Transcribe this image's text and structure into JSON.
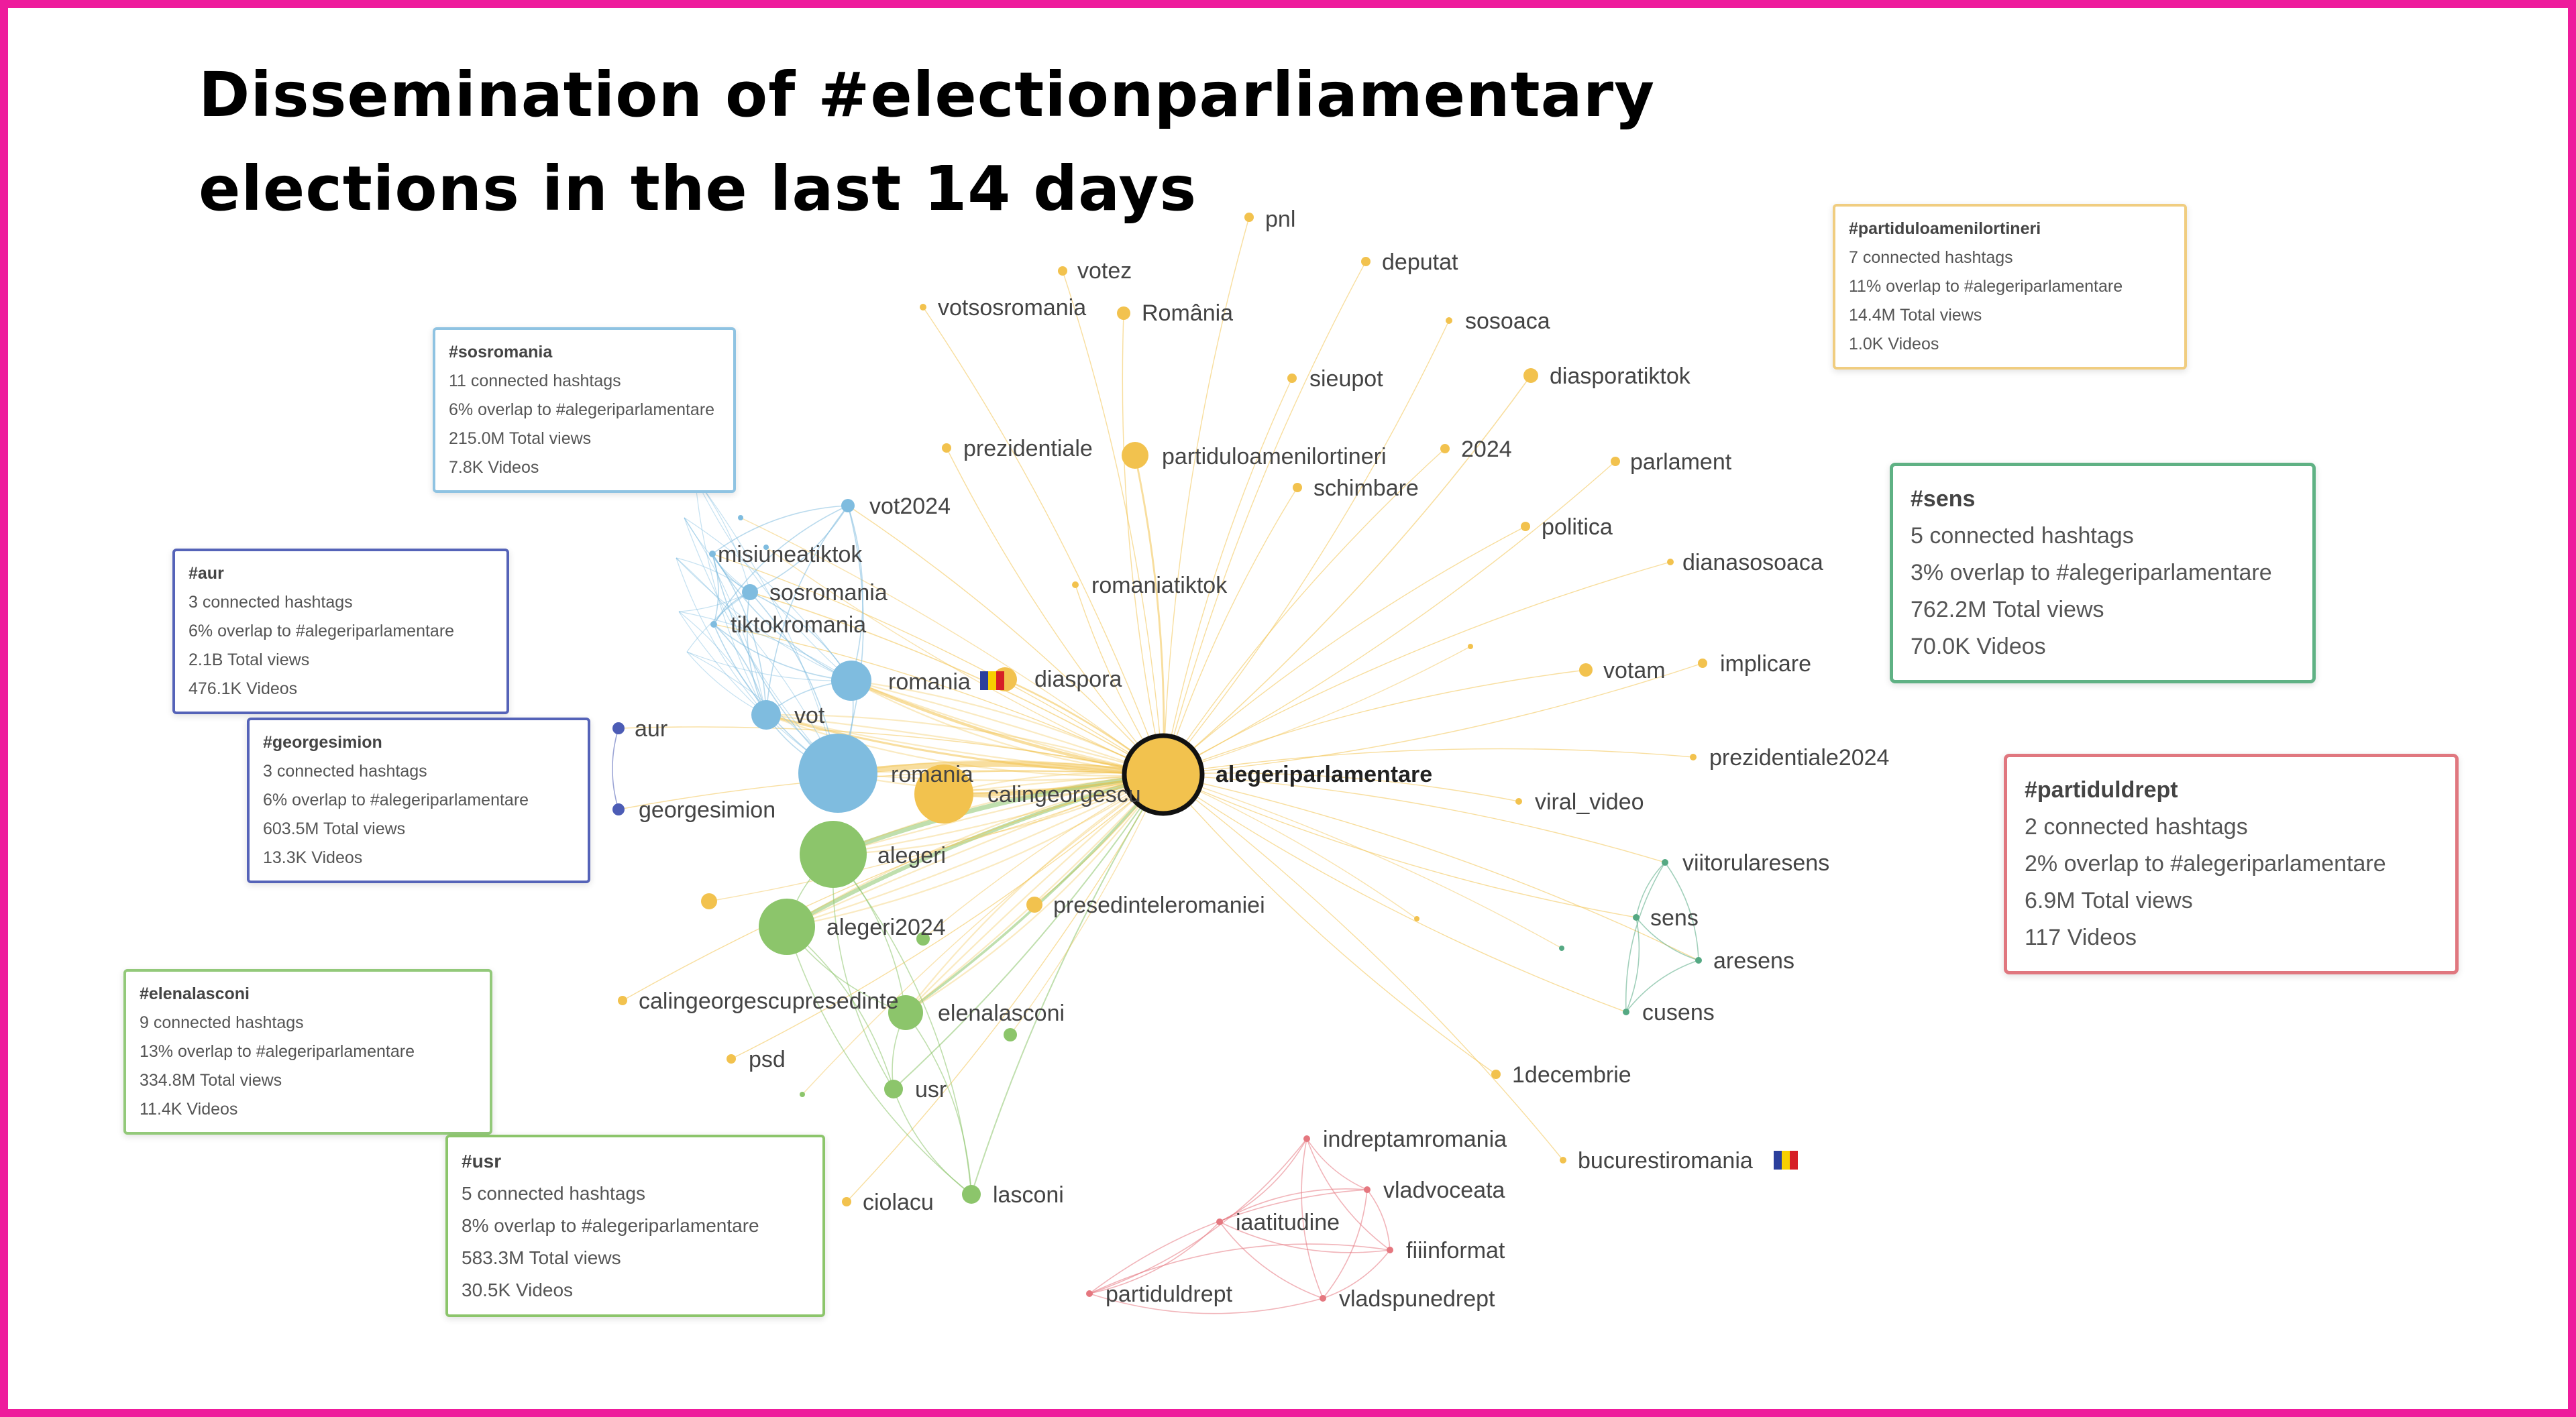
{
  "title": {
    "line1": "Dissemination of #electionparliamentary",
    "line2": "elections in the last 14 days"
  },
  "colors": {
    "frame": "#ee1c9c",
    "yellow": "#f2c24e",
    "blue": "#7fbcdf",
    "green": "#8cc56b",
    "red": "#e5777f",
    "teal": "#55a983",
    "navy": "#4c5cb5"
  },
  "center_node": "alegeriparlamentare",
  "nodes": {
    "pnl": "pnl",
    "votez": "votez",
    "deputat": "deputat",
    "votsosromania": "votsosromania",
    "romania_diacritic": "România",
    "sosoaca": "sosoaca",
    "sieupot": "sieupot",
    "diasporatiktok": "diasporatiktok",
    "prezidentiale": "prezidentiale",
    "partiduloamenilortineri": "partiduloamenilortineri",
    "y2024": "2024",
    "parlament": "parlament",
    "schimbare": "schimbare",
    "vot2024": "vot2024",
    "politica": "politica",
    "misiuneatiktok": "misiuneatiktok",
    "dianasosoaca": "dianasosoaca",
    "sosromania": "sosromania",
    "romaniatiktok": "romaniatiktok",
    "tiktokromania": "tiktokromania",
    "votam": "votam",
    "implicare": "implicare",
    "romania_flag": "romania",
    "diaspora": "diaspora",
    "vot": "vot",
    "aur": "aur",
    "prezidentiale2024": "prezidentiale2024",
    "romania": "romania",
    "calingeorgescu": "calingeorgescu",
    "georgesimion": "georgesimion",
    "viral_video": "viral_video",
    "alegeri": "alegeri",
    "viitorularesens": "viitorularesens",
    "sens": "sens",
    "presedinteleromaniei": "presedinteleromaniei",
    "alegeri2024": "alegeri2024",
    "aresens": "aresens",
    "calingeorgescupresedinte": "calingeorgescupresedinte",
    "elenalasconi": "elenalasconi",
    "cusens": "cusens",
    "psd": "psd",
    "y1decembrie": "1decembrie",
    "usr": "usr",
    "indreptamromania": "indreptamromania",
    "bucurestiromania": "bucurestiromania",
    "vladvoceata": "vladvoceata",
    "ciolacu": "ciolacu",
    "lasconi": "lasconi",
    "iaatitudine": "iaatitudine",
    "fiiinformat": "fiiinformat",
    "partiduldrept": "partiduldrept",
    "vladspunedrept": "vladspunedrept"
  },
  "cards": {
    "sosromania": {
      "title": "#sosromania",
      "connected": "11 connected hashtags",
      "overlap": "6% overlap to #alegeriparlamentare",
      "views": "215.0M Total views",
      "videos": "7.8K Videos"
    },
    "aur": {
      "title": "#aur",
      "connected": "3 connected hashtags",
      "overlap": "6% overlap to #alegeriparlamentare",
      "views": "2.1B Total views",
      "videos": "476.1K Videos"
    },
    "georgesimion": {
      "title": "#georgesimion",
      "connected": "3 connected hashtags",
      "overlap": "6% overlap to #alegeriparlamentare",
      "views": "603.5M Total views",
      "videos": "13.3K Videos"
    },
    "elenalasconi": {
      "title": "#elenalasconi",
      "connected": "9 connected hashtags",
      "overlap": "13% overlap to #alegeriparlamentare",
      "views": "334.8M Total views",
      "videos": "11.4K Videos"
    },
    "usr": {
      "title": "#usr",
      "connected": "5 connected hashtags",
      "overlap": "8% overlap to #alegeriparlamentare",
      "views": "583.3M Total views",
      "videos": "30.5K Videos"
    },
    "partiduloamenilortineri": {
      "title": "#partiduloamenilortineri",
      "connected": "7 connected hashtags",
      "overlap": "11% overlap to #alegeriparlamentare",
      "views": "14.4M Total views",
      "videos": "1.0K Videos"
    },
    "sens": {
      "title": "#sens",
      "connected": "5 connected hashtags",
      "overlap": "3% overlap to #alegeriparlamentare",
      "views": "762.2M Total views",
      "videos": "70.0K Videos"
    },
    "partiduldrept": {
      "title": "#partiduldrept",
      "connected": "2 connected hashtags",
      "overlap": "2% overlap to #alegeriparlamentare",
      "views": "6.9M Total views",
      "videos": "117 Videos"
    }
  }
}
